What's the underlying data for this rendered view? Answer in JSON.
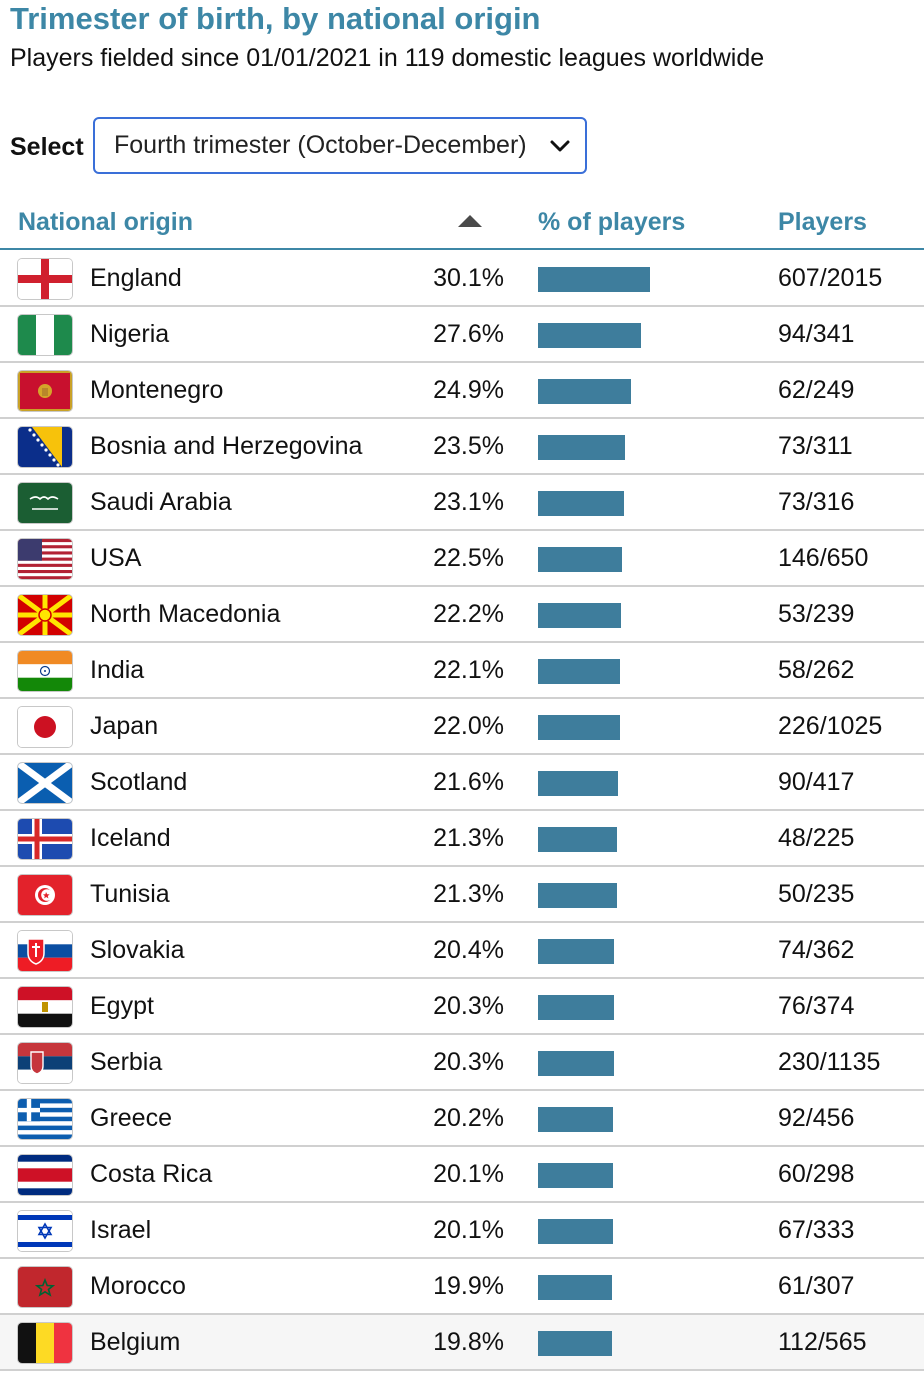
{
  "header": {
    "title": "Trimester of birth, by national origin",
    "subtitle": "Players fielded since 01/01/2021 in 119 domestic leagues worldwide"
  },
  "filter": {
    "label": "Select",
    "selected": "Fourth trimester (October-December)"
  },
  "table": {
    "columns": [
      "National origin",
      "% of players",
      "Players"
    ],
    "sort_column": "National origin",
    "bar_color": "#3e7d9c",
    "accent_color": "#3d87a6",
    "rows": [
      {
        "country": "England",
        "pct": "30.1%",
        "value": 30.1,
        "players": "607/2015",
        "flag": "england-flag-icon"
      },
      {
        "country": "Nigeria",
        "pct": "27.6%",
        "value": 27.6,
        "players": "94/341",
        "flag": "nigeria-flag-icon"
      },
      {
        "country": "Montenegro",
        "pct": "24.9%",
        "value": 24.9,
        "players": "62/249",
        "flag": "montenegro-flag-icon"
      },
      {
        "country": "Bosnia and Herzegovina",
        "pct": "23.5%",
        "value": 23.5,
        "players": "73/311",
        "flag": "bosnia-flag-icon"
      },
      {
        "country": "Saudi Arabia",
        "pct": "23.1%",
        "value": 23.1,
        "players": "73/316",
        "flag": "saudi-arabia-flag-icon"
      },
      {
        "country": "USA",
        "pct": "22.5%",
        "value": 22.5,
        "players": "146/650",
        "flag": "usa-flag-icon"
      },
      {
        "country": "North Macedonia",
        "pct": "22.2%",
        "value": 22.2,
        "players": "53/239",
        "flag": "north-macedonia-flag-icon"
      },
      {
        "country": "India",
        "pct": "22.1%",
        "value": 22.1,
        "players": "58/262",
        "flag": "india-flag-icon"
      },
      {
        "country": "Japan",
        "pct": "22.0%",
        "value": 22.0,
        "players": "226/1025",
        "flag": "japan-flag-icon"
      },
      {
        "country": "Scotland",
        "pct": "21.6%",
        "value": 21.6,
        "players": "90/417",
        "flag": "scotland-flag-icon"
      },
      {
        "country": "Iceland",
        "pct": "21.3%",
        "value": 21.3,
        "players": "48/225",
        "flag": "iceland-flag-icon"
      },
      {
        "country": "Tunisia",
        "pct": "21.3%",
        "value": 21.3,
        "players": "50/235",
        "flag": "tunisia-flag-icon"
      },
      {
        "country": "Slovakia",
        "pct": "20.4%",
        "value": 20.4,
        "players": "74/362",
        "flag": "slovakia-flag-icon"
      },
      {
        "country": "Egypt",
        "pct": "20.3%",
        "value": 20.3,
        "players": "76/374",
        "flag": "egypt-flag-icon"
      },
      {
        "country": "Serbia",
        "pct": "20.3%",
        "value": 20.3,
        "players": "230/1135",
        "flag": "serbia-flag-icon"
      },
      {
        "country": "Greece",
        "pct": "20.2%",
        "value": 20.2,
        "players": "92/456",
        "flag": "greece-flag-icon"
      },
      {
        "country": "Costa Rica",
        "pct": "20.1%",
        "value": 20.1,
        "players": "60/298",
        "flag": "costa-rica-flag-icon"
      },
      {
        "country": "Israel",
        "pct": "20.1%",
        "value": 20.1,
        "players": "67/333",
        "flag": "israel-flag-icon"
      },
      {
        "country": "Morocco",
        "pct": "19.9%",
        "value": 19.9,
        "players": "61/307",
        "flag": "morocco-flag-icon"
      },
      {
        "country": "Belgium",
        "pct": "19.8%",
        "value": 19.8,
        "players": "112/565",
        "flag": "belgium-flag-icon"
      }
    ]
  }
}
